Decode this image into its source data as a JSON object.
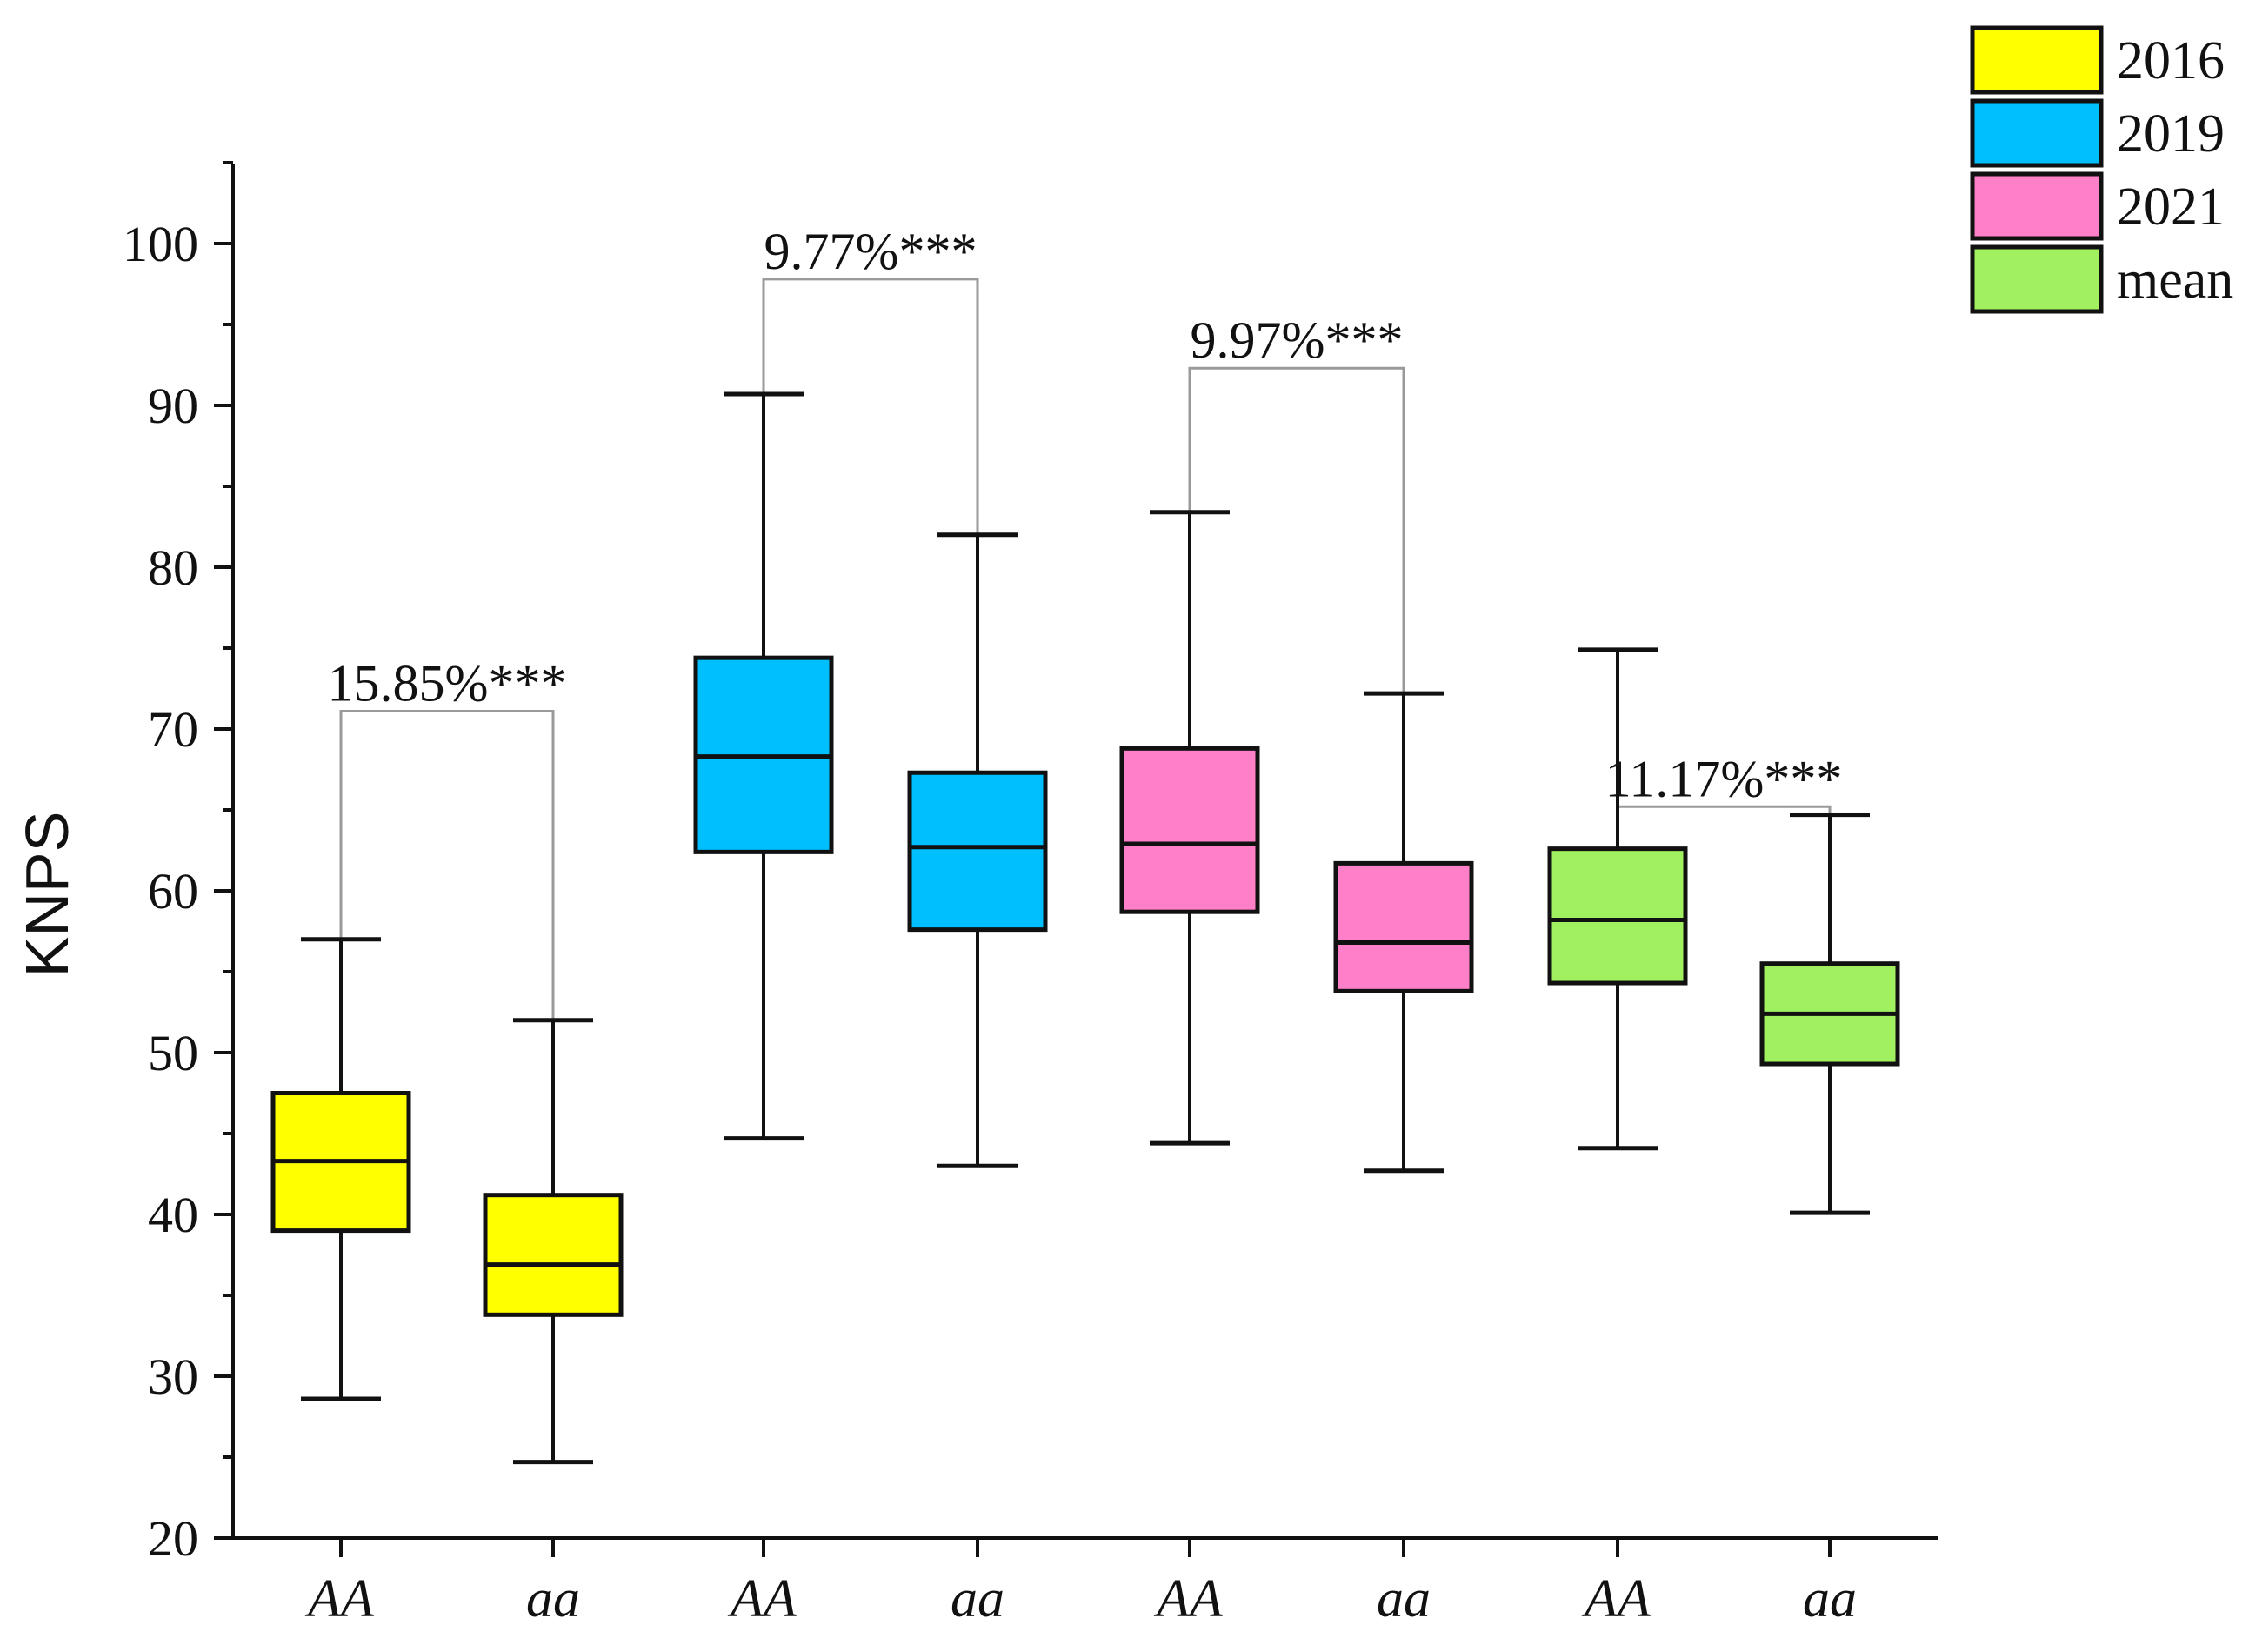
{
  "chart_data": {
    "type": "box",
    "title": "",
    "xlabel": "",
    "ylabel": "KNPS",
    "ylim": [
      20,
      105
    ],
    "yticks": [
      20,
      30,
      40,
      50,
      60,
      70,
      80,
      90,
      100
    ],
    "categories": [
      "AA",
      "aa",
      "AA",
      "aa",
      "AA",
      "aa",
      "AA",
      "aa"
    ],
    "legend": {
      "position": "top-right",
      "entries": [
        {
          "label": "2016",
          "color": "#ffff00"
        },
        {
          "label": "2019",
          "color": "#00bfff"
        },
        {
          "label": "2021",
          "color": "#ff80c8"
        },
        {
          "label": "mean",
          "color": "#a0f060"
        }
      ]
    },
    "boxes": [
      {
        "category": "AA",
        "group": "2016",
        "color": "#ffff00",
        "min": 28.6,
        "q1": 39.0,
        "median": 43.3,
        "q3": 47.5,
        "max": 57.0
      },
      {
        "category": "aa",
        "group": "2016",
        "color": "#ffff00",
        "min": 24.7,
        "q1": 33.8,
        "median": 36.9,
        "q3": 41.2,
        "max": 52.0
      },
      {
        "category": "AA",
        "group": "2019",
        "color": "#00bfff",
        "min": 44.7,
        "q1": 62.4,
        "median": 68.3,
        "q3": 74.4,
        "max": 90.7
      },
      {
        "category": "aa",
        "group": "2019",
        "color": "#00bfff",
        "min": 43.0,
        "q1": 57.6,
        "median": 62.7,
        "q3": 67.3,
        "max": 82.0
      },
      {
        "category": "AA",
        "group": "2021",
        "color": "#ff80c8",
        "min": 44.4,
        "q1": 58.7,
        "median": 62.9,
        "q3": 68.8,
        "max": 83.4
      },
      {
        "category": "aa",
        "group": "2021",
        "color": "#ff80c8",
        "min": 42.7,
        "q1": 53.8,
        "median": 56.8,
        "q3": 61.7,
        "max": 72.2
      },
      {
        "category": "AA",
        "group": "mean",
        "color": "#a0f060",
        "min": 44.1,
        "q1": 54.3,
        "median": 58.2,
        "q3": 62.6,
        "max": 74.9
      },
      {
        "category": "aa",
        "group": "mean",
        "color": "#a0f060",
        "min": 40.1,
        "q1": 49.3,
        "median": 52.4,
        "q3": 55.5,
        "max": 64.7
      }
    ],
    "annotations": [
      {
        "label": "15.85%***",
        "from": 0,
        "to": 1,
        "y": 71.1
      },
      {
        "label": "9.77%***",
        "from": 2,
        "to": 3,
        "y": 97.8
      },
      {
        "label": "9.97%***",
        "from": 4,
        "to": 5,
        "y": 92.3
      },
      {
        "label": "11.17%***",
        "from": 6,
        "to": 7,
        "y": 65.2
      }
    ]
  }
}
